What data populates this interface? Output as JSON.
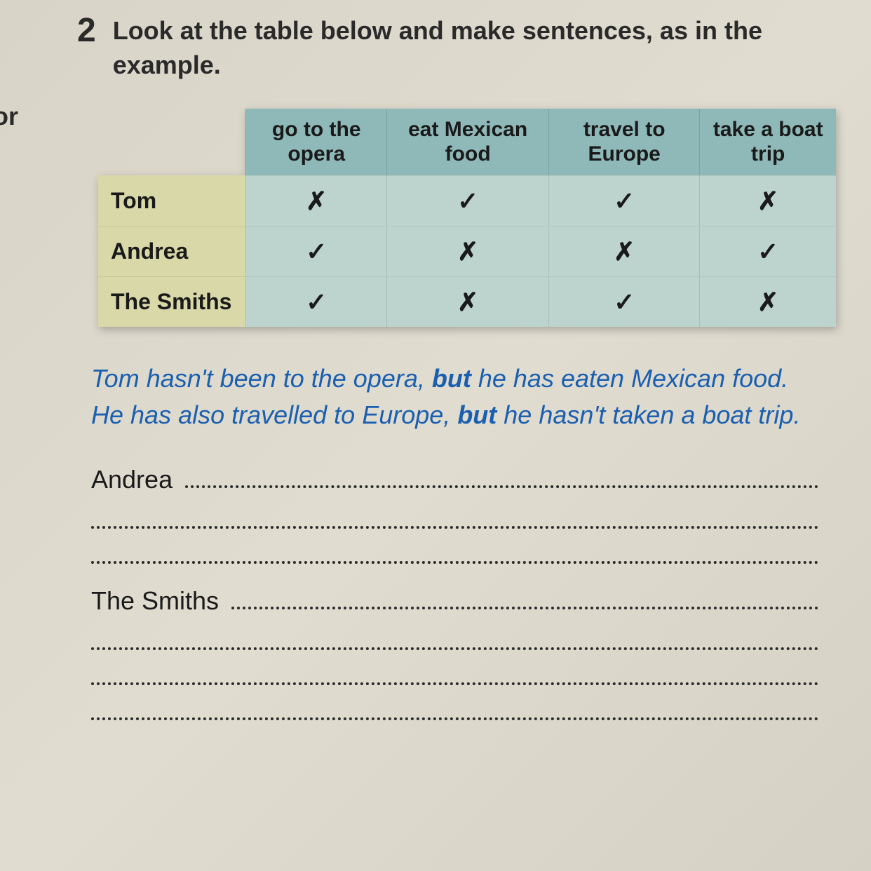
{
  "margin_fragment": "or",
  "exercise_number": "2",
  "instruction": "Look at the table below and make sentences, as in the example.",
  "table": {
    "columns": [
      "go to the opera",
      "eat Mexican food",
      "travel to Europe",
      "take a boat trip"
    ],
    "rows": [
      {
        "name": "Tom",
        "marks": [
          "✗",
          "✓",
          "✓",
          "✗"
        ]
      },
      {
        "name": "Andrea",
        "marks": [
          "✓",
          "✗",
          "✗",
          "✓"
        ]
      },
      {
        "name": "The Smiths",
        "marks": [
          "✓",
          "✗",
          "✓",
          "✗"
        ]
      }
    ],
    "header_bg": "#8fb8b8",
    "name_col_bg": "#d9d8a8",
    "cell_bg": "#bcd4cd",
    "header_fontsize": 30,
    "name_fontsize": 32,
    "mark_fontsize": 36
  },
  "example": {
    "parts": [
      {
        "text": "Tom hasn't been to the opera, ",
        "bold": false
      },
      {
        "text": "but",
        "bold": true
      },
      {
        "text": " he has eaten Mexican food. He has also travelled to Europe, ",
        "bold": false
      },
      {
        "text": "but",
        "bold": true
      },
      {
        "text": " he hasn't taken a boat trip.",
        "bold": false
      }
    ],
    "color": "#1a5fb0",
    "fontsize": 36
  },
  "answers": [
    {
      "label": "Andrea",
      "lines": 3
    },
    {
      "label": "The Smiths",
      "lines": 4
    }
  ],
  "colors": {
    "page_bg": "#dcd8cc",
    "text": "#2a2a2a"
  }
}
